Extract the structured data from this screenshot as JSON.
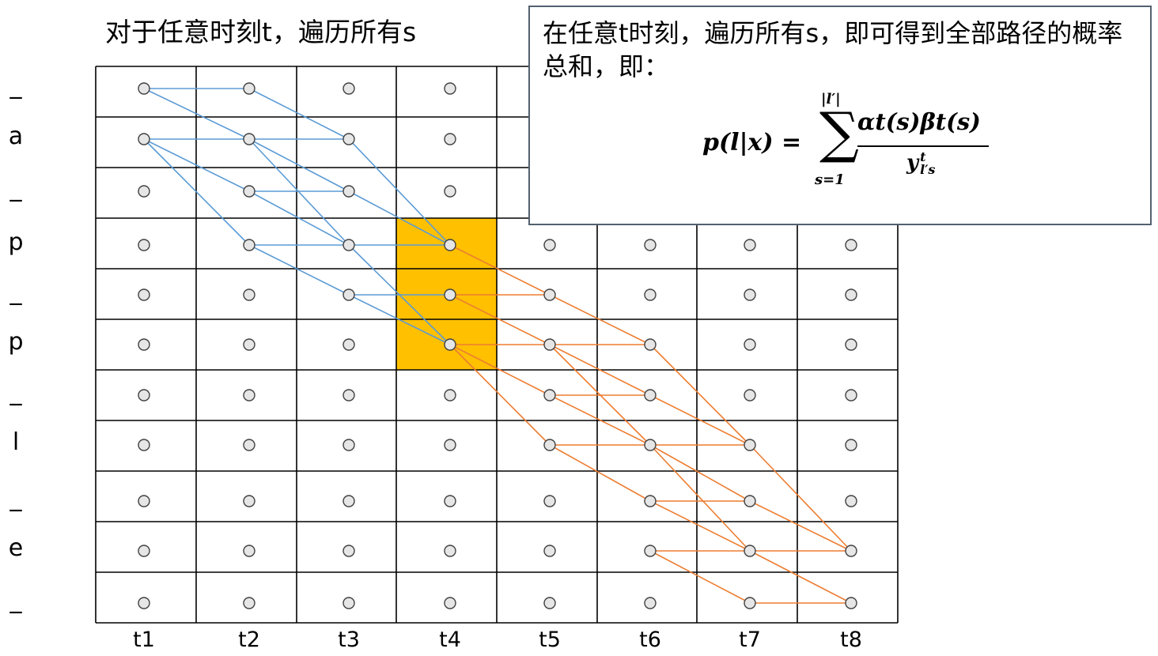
{
  "title_left": "对于任意时刻t，遍历所有s",
  "info_box": {
    "text": "在任意t时刻，遍历所有s，即可得到全部路径的概率总和，即：",
    "formula": {
      "lhs": "p(l|x) =",
      "sum_symbol": "∑",
      "upper_limit": "|l′|",
      "lower_limit": "s=1",
      "numerator": "αt(s)βt(s)",
      "denominator": "y",
      "denominator_sup": "t",
      "denominator_sub": "l′s"
    }
  },
  "row_labels": [
    "_",
    "a",
    "_",
    "p",
    "_",
    "p",
    "_",
    "l",
    "_",
    "e",
    "_"
  ],
  "col_labels": [
    "t1",
    "t2",
    "t3",
    "t4",
    "t5",
    "t6",
    "t7",
    "t8"
  ],
  "highlight": {
    "col": "t4",
    "rows": [
      3,
      4,
      5
    ],
    "color": "#FFC000"
  },
  "colors": {
    "grid_line": "#000000",
    "node_fill": "#E7E6E6",
    "node_stroke": "#404040",
    "forward_path": "#5B9BD5",
    "backward_path": "#ED7D31",
    "box_border": "#536170"
  },
  "forward_edges": [
    [
      0,
      0,
      1,
      0
    ],
    [
      0,
      0,
      1,
      1
    ],
    [
      0,
      1,
      1,
      1
    ],
    [
      0,
      1,
      1,
      2
    ],
    [
      0,
      1,
      1,
      3
    ],
    [
      1,
      0,
      2,
      1
    ],
    [
      1,
      1,
      2,
      1
    ],
    [
      1,
      1,
      2,
      2
    ],
    [
      1,
      1,
      2,
      3
    ],
    [
      1,
      2,
      2,
      2
    ],
    [
      1,
      2,
      2,
      3
    ],
    [
      1,
      3,
      2,
      3
    ],
    [
      1,
      3,
      2,
      4
    ],
    [
      2,
      1,
      3,
      3
    ],
    [
      2,
      2,
      3,
      3
    ],
    [
      2,
      3,
      3,
      3
    ],
    [
      2,
      3,
      3,
      5
    ],
    [
      2,
      4,
      3,
      4
    ],
    [
      2,
      4,
      3,
      5
    ]
  ],
  "backward_edges": [
    [
      3,
      3,
      4,
      4
    ],
    [
      3,
      4,
      4,
      4
    ],
    [
      3,
      4,
      4,
      5
    ],
    [
      3,
      5,
      4,
      5
    ],
    [
      3,
      5,
      4,
      6
    ],
    [
      3,
      5,
      4,
      7
    ],
    [
      4,
      4,
      5,
      5
    ],
    [
      4,
      5,
      5,
      5
    ],
    [
      4,
      5,
      5,
      6
    ],
    [
      4,
      5,
      5,
      7
    ],
    [
      4,
      6,
      5,
      6
    ],
    [
      4,
      6,
      5,
      7
    ],
    [
      4,
      7,
      5,
      7
    ],
    [
      4,
      7,
      5,
      8
    ],
    [
      5,
      5,
      6,
      7
    ],
    [
      5,
      6,
      6,
      7
    ],
    [
      5,
      7,
      6,
      7
    ],
    [
      5,
      7,
      6,
      8
    ],
    [
      5,
      7,
      6,
      9
    ],
    [
      5,
      8,
      6,
      8
    ],
    [
      5,
      8,
      6,
      9
    ],
    [
      5,
      9,
      6,
      9
    ],
    [
      5,
      9,
      6,
      10
    ],
    [
      6,
      8,
      7,
      9
    ],
    [
      6,
      9,
      7,
      9
    ],
    [
      6,
      9,
      7,
      10
    ],
    [
      6,
      10,
      7,
      10
    ],
    [
      6,
      7,
      7,
      9
    ]
  ]
}
